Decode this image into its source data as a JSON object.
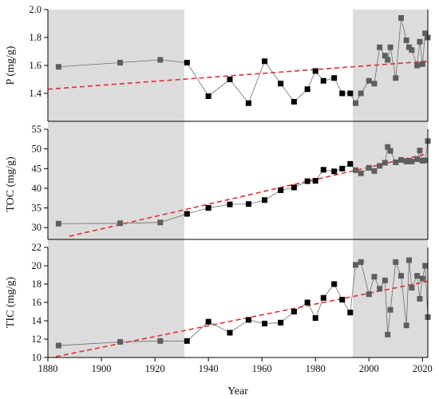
{
  "chart_data": {
    "type": "scatter",
    "xlabel": "Year",
    "xlim": [
      1880,
      2022
    ],
    "xticks": [
      1880,
      1900,
      1920,
      1940,
      1960,
      1980,
      2000,
      2020
    ],
    "shaded_x_ranges": [
      [
        1880,
        1931
      ],
      [
        1994,
        2022
      ]
    ],
    "colors": {
      "shade": "#dcdcdc",
      "marker_shaded": "#5e5e5e",
      "marker_normal": "#000000",
      "line": "#6e6e6e",
      "trend": "#e03030",
      "axis": "#000000"
    },
    "panels": [
      {
        "ylabel": "P (mg/g)",
        "ylim": [
          1.2,
          2.0
        ],
        "yticks": [
          "1.4",
          "1.6",
          "1.8",
          "2.0"
        ],
        "ytick_values": [
          1.4,
          1.6,
          1.8,
          2.0
        ],
        "trend": {
          "x": [
            1880,
            2022
          ],
          "y": [
            1.43,
            1.63
          ]
        },
        "series": {
          "x": [
            1884,
            1907,
            1922,
            1932,
            1940,
            1948,
            1955,
            1961,
            1967,
            1972,
            1977,
            1980,
            1983,
            1987,
            1990,
            1993,
            1995,
            1997,
            2000,
            2002,
            2004,
            2006,
            2007,
            2008,
            2010,
            2012,
            2014,
            2015,
            2016,
            2018,
            2019,
            2020,
            2021,
            2022
          ],
          "y": [
            1.59,
            1.62,
            1.64,
            1.62,
            1.38,
            1.5,
            1.33,
            1.63,
            1.47,
            1.34,
            1.43,
            1.56,
            1.49,
            1.51,
            1.4,
            1.4,
            1.33,
            1.4,
            1.49,
            1.47,
            1.73,
            1.67,
            1.64,
            1.73,
            1.51,
            1.94,
            1.78,
            1.73,
            1.71,
            1.6,
            1.77,
            1.61,
            1.83,
            1.8
          ]
        }
      },
      {
        "ylabel": "TOC (mg/g)",
        "ylim": [
          27,
          55
        ],
        "yticks": [
          "30",
          "35",
          "40",
          "45",
          "50",
          "55"
        ],
        "ytick_values": [
          30,
          35,
          40,
          45,
          50,
          55
        ],
        "trend": {
          "x": [
            1888,
            2022
          ],
          "y": [
            27.8,
            48.8
          ]
        },
        "series": {
          "x": [
            1884,
            1907,
            1922,
            1932,
            1940,
            1948,
            1955,
            1961,
            1967,
            1972,
            1977,
            1980,
            1983,
            1987,
            1990,
            1993,
            1995,
            1997,
            2000,
            2002,
            2004,
            2006,
            2007,
            2008,
            2010,
            2012,
            2014,
            2015,
            2016,
            2018,
            2019,
            2020,
            2021,
            2022
          ],
          "y": [
            31.0,
            31.1,
            31.3,
            33.5,
            35.0,
            35.9,
            36.0,
            37.0,
            39.5,
            40.2,
            41.8,
            41.9,
            44.7,
            44.3,
            45.0,
            46.2,
            44.6,
            43.8,
            45.2,
            44.4,
            45.7,
            46.5,
            50.5,
            49.5,
            46.6,
            47.2,
            46.8,
            47.0,
            46.8,
            47.4,
            49.6,
            47.0,
            47.1,
            52.0
          ]
        }
      },
      {
        "ylabel": "TIC (mg/g)",
        "ylim": [
          10,
          22
        ],
        "yticks": [
          "10",
          "12",
          "14",
          "16",
          "18",
          "20",
          "22"
        ],
        "ytick_values": [
          10,
          12,
          14,
          16,
          18,
          20,
          22
        ],
        "trend": {
          "x": [
            1883,
            2022
          ],
          "y": [
            10.1,
            18.3
          ]
        },
        "series": {
          "x": [
            1884,
            1907,
            1922,
            1932,
            1940,
            1948,
            1955,
            1961,
            1967,
            1972,
            1977,
            1980,
            1983,
            1987,
            1990,
            1993,
            1995,
            1997,
            2000,
            2002,
            2004,
            2006,
            2007,
            2008,
            2010,
            2012,
            2014,
            2015,
            2016,
            2018,
            2019,
            2020,
            2021,
            2022
          ],
          "y": [
            11.3,
            11.7,
            11.8,
            11.8,
            13.9,
            12.7,
            14.1,
            13.7,
            13.8,
            15.0,
            16.0,
            14.3,
            16.5,
            18.0,
            16.3,
            14.9,
            20.1,
            20.4,
            16.9,
            18.8,
            17.5,
            18.4,
            12.5,
            15.2,
            20.4,
            18.9,
            13.5,
            20.6,
            17.6,
            18.9,
            16.4,
            18.6,
            20.0,
            14.4
          ]
        }
      }
    ]
  }
}
